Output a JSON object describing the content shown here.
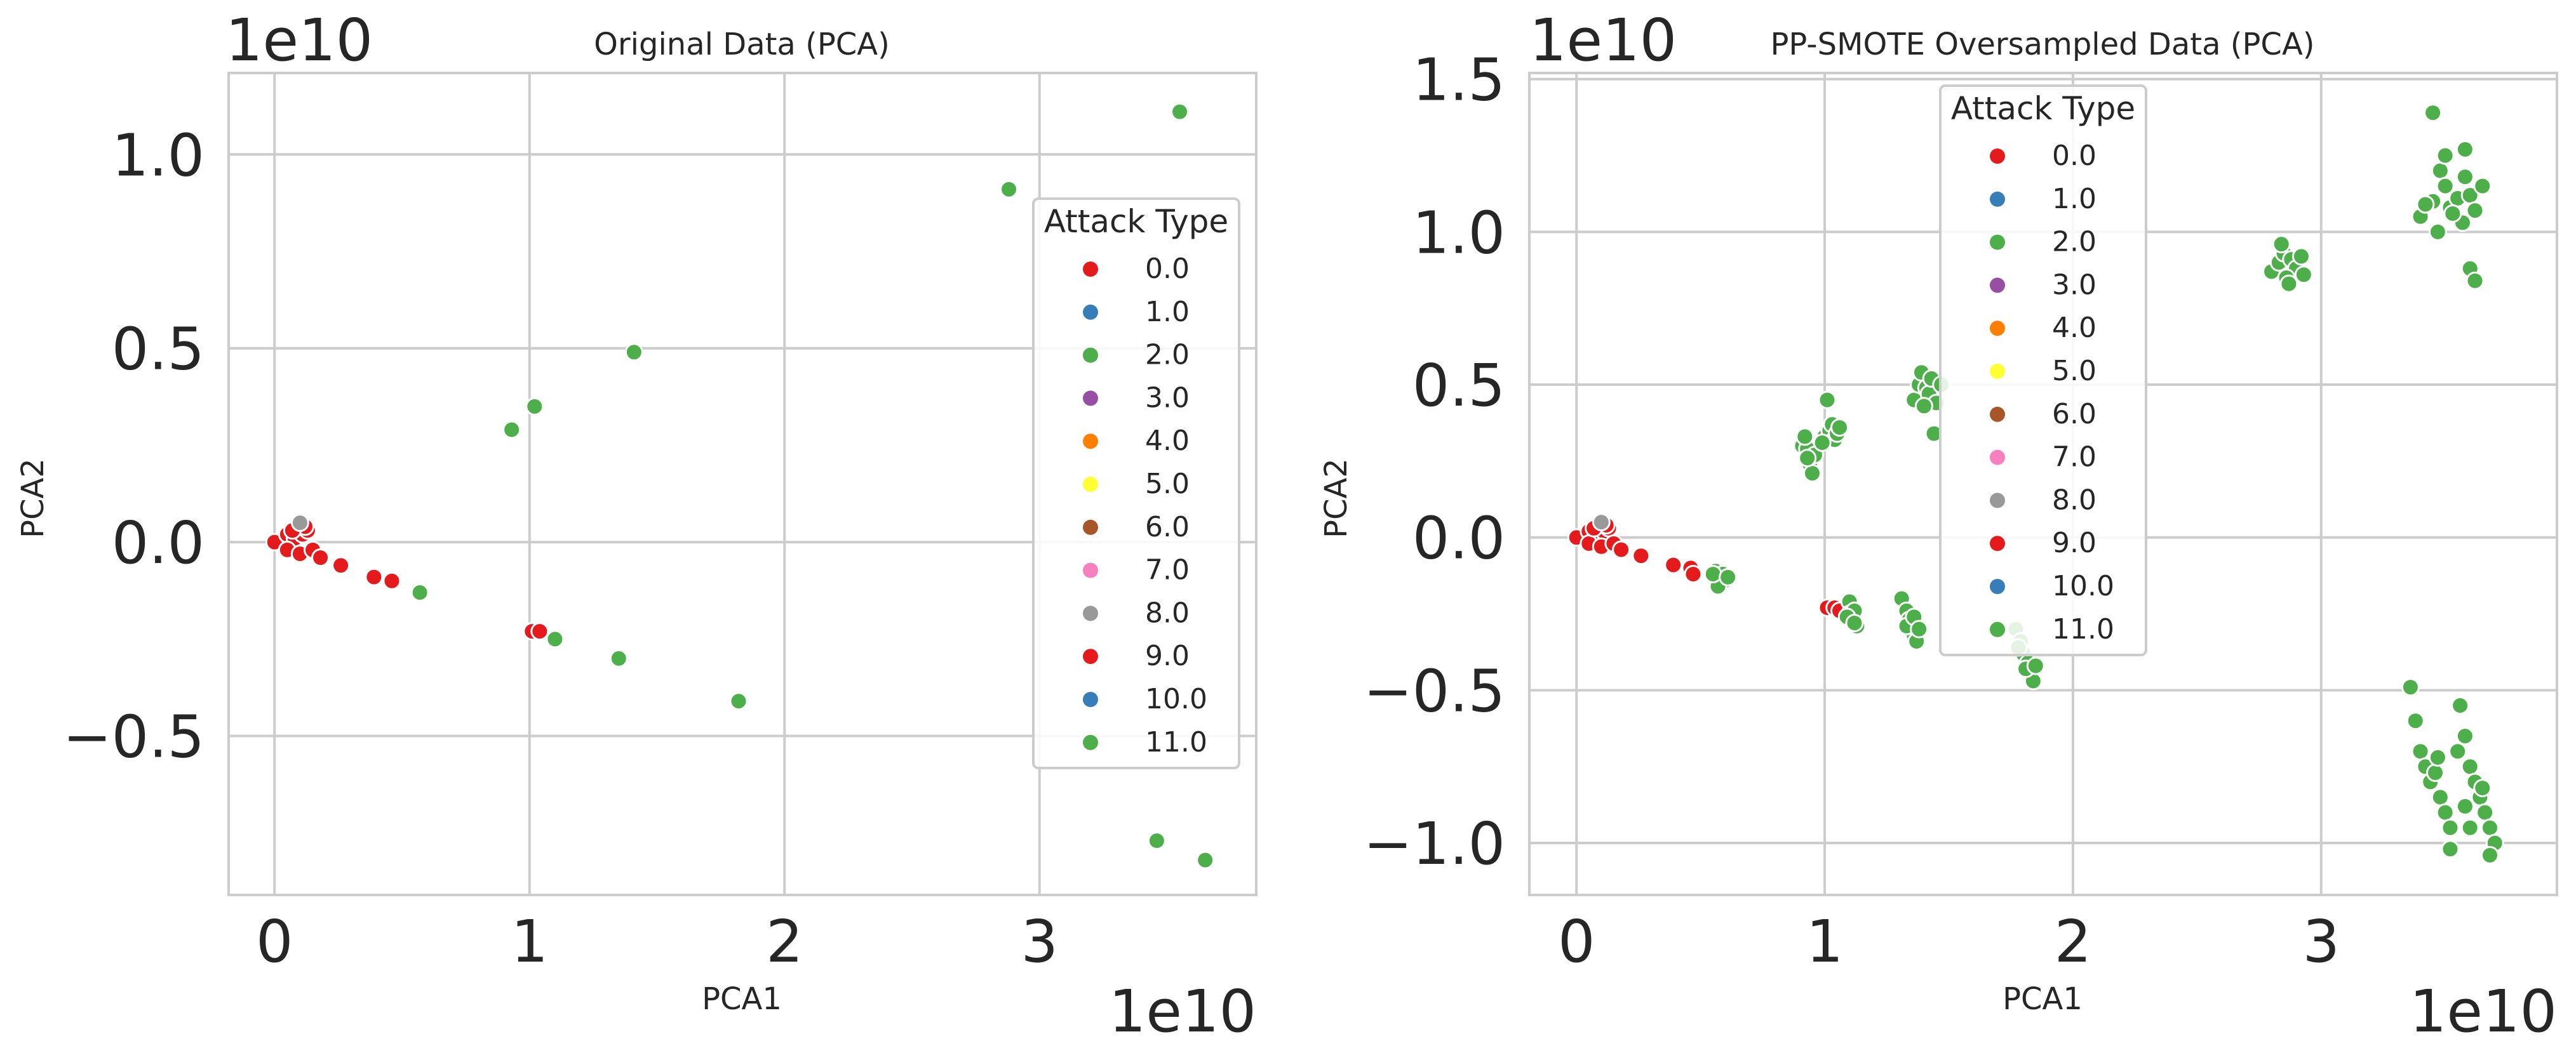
{
  "colors": {
    "red": "#e41a1c",
    "blue": "#377eb8",
    "green": "#4daf4a",
    "purple": "#984ea3",
    "orange": "#ff7f00",
    "yellow": "#ffff33",
    "brown": "#a65628",
    "pink": "#f781bf",
    "gray": "#999999"
  },
  "chart_data": [
    {
      "type": "scatter",
      "title": "Original Data (PCA)",
      "xlabel": "PCA1",
      "ylabel": "PCA2",
      "x_offset_text": "1e10",
      "y_offset_text": "1e10",
      "xlim": [
        -0.18,
        3.85
      ],
      "ylim": [
        -0.91,
        1.21
      ],
      "xticks": [
        0,
        1,
        2,
        3
      ],
      "xtick_labels": [
        "0",
        "1",
        "2",
        "3"
      ],
      "yticks": [
        -0.5,
        0.0,
        0.5,
        1.0
      ],
      "ytick_labels": [
        "−0.5",
        "0.0",
        "0.5",
        "1.0"
      ],
      "grid": true,
      "legend": {
        "title": "Attack Type",
        "placement": "right",
        "entries": [
          {
            "label": "0.0",
            "color": "#e41a1c"
          },
          {
            "label": "1.0",
            "color": "#377eb8"
          },
          {
            "label": "2.0",
            "color": "#4daf4a"
          },
          {
            "label": "3.0",
            "color": "#984ea3"
          },
          {
            "label": "4.0",
            "color": "#ff7f00"
          },
          {
            "label": "5.0",
            "color": "#ffff33"
          },
          {
            "label": "6.0",
            "color": "#a65628"
          },
          {
            "label": "7.0",
            "color": "#f781bf"
          },
          {
            "label": "8.0",
            "color": "#999999"
          },
          {
            "label": "9.0",
            "color": "#e41a1c"
          },
          {
            "label": "10.0",
            "color": "#377eb8"
          },
          {
            "label": "11.0",
            "color": "#4daf4a"
          }
        ]
      },
      "series": [
        {
          "name": "0.0",
          "color": "#e41a1c",
          "points": [
            [
              0.0,
              0.0
            ],
            [
              0.05,
              0.02
            ],
            [
              0.08,
              0.01
            ],
            [
              0.11,
              0.02
            ],
            [
              0.13,
              0.03
            ],
            [
              0.05,
              -0.02
            ],
            [
              0.1,
              -0.03
            ],
            [
              0.15,
              -0.02
            ],
            [
              0.18,
              -0.04
            ],
            [
              0.12,
              0.04
            ],
            [
              0.07,
              0.03
            ]
          ]
        },
        {
          "name": "2.0",
          "color": "#4daf4a",
          "points": [
            [
              0.57,
              -0.13
            ],
            [
              1.1,
              -0.25
            ],
            [
              1.35,
              -0.3
            ],
            [
              1.82,
              -0.41
            ],
            [
              0.93,
              0.29
            ],
            [
              1.02,
              0.35
            ],
            [
              1.41,
              0.49
            ],
            [
              2.88,
              0.91
            ],
            [
              3.55,
              1.11
            ],
            [
              3.46,
              -0.77
            ],
            [
              3.65,
              -0.82
            ]
          ]
        },
        {
          "name": "8.0",
          "color": "#999999",
          "points": [
            [
              0.1,
              0.05
            ]
          ]
        },
        {
          "name": "9.0",
          "color": "#e41a1c",
          "points": [
            [
              0.26,
              -0.06
            ],
            [
              0.39,
              -0.09
            ],
            [
              0.46,
              -0.1
            ],
            [
              1.01,
              -0.23
            ],
            [
              1.04,
              -0.23
            ]
          ]
        }
      ]
    },
    {
      "type": "scatter",
      "title": "PP-SMOTE Oversampled Data (PCA)",
      "xlabel": "PCA1",
      "ylabel": "PCA2",
      "x_offset_text": "1e10",
      "y_offset_text": "1e10",
      "xlim": [
        -0.19,
        3.95
      ],
      "ylim": [
        -1.17,
        1.52
      ],
      "xticks": [
        0,
        1,
        2,
        3
      ],
      "xtick_labels": [
        "0",
        "1",
        "2",
        "3"
      ],
      "yticks": [
        -1.0,
        -0.5,
        0.0,
        0.5,
        1.0,
        1.5
      ],
      "ytick_labels": [
        "−1.0",
        "−0.5",
        "0.0",
        "0.5",
        "1.0",
        "1.5"
      ],
      "grid": true,
      "legend": {
        "title": "Attack Type",
        "placement": "upper center",
        "entries": [
          {
            "label": "0.0",
            "color": "#e41a1c"
          },
          {
            "label": "1.0",
            "color": "#377eb8"
          },
          {
            "label": "2.0",
            "color": "#4daf4a"
          },
          {
            "label": "3.0",
            "color": "#984ea3"
          },
          {
            "label": "4.0",
            "color": "#ff7f00"
          },
          {
            "label": "5.0",
            "color": "#ffff33"
          },
          {
            "label": "6.0",
            "color": "#a65628"
          },
          {
            "label": "7.0",
            "color": "#f781bf"
          },
          {
            "label": "8.0",
            "color": "#999999"
          },
          {
            "label": "9.0",
            "color": "#e41a1c"
          },
          {
            "label": "10.0",
            "color": "#377eb8"
          },
          {
            "label": "11.0",
            "color": "#4daf4a"
          }
        ]
      },
      "series": [
        {
          "name": "0.0",
          "color": "#e41a1c",
          "points": [
            [
              0.0,
              0.0
            ],
            [
              0.05,
              0.02
            ],
            [
              0.08,
              0.01
            ],
            [
              0.11,
              0.02
            ],
            [
              0.13,
              0.03
            ],
            [
              0.05,
              -0.02
            ],
            [
              0.1,
              -0.03
            ],
            [
              0.15,
              -0.02
            ],
            [
              0.18,
              -0.04
            ],
            [
              0.12,
              0.04
            ],
            [
              0.07,
              0.03
            ]
          ]
        },
        {
          "name": "8.0",
          "color": "#999999",
          "points": [
            [
              0.1,
              0.05
            ]
          ]
        },
        {
          "name": "9.0",
          "color": "#e41a1c",
          "points": [
            [
              0.26,
              -0.06
            ],
            [
              0.39,
              -0.09
            ],
            [
              0.46,
              -0.1
            ],
            [
              0.47,
              -0.12
            ],
            [
              1.01,
              -0.23
            ],
            [
              1.04,
              -0.23
            ],
            [
              1.06,
              -0.24
            ]
          ]
        },
        {
          "name": "11.0",
          "color": "#4daf4a",
          "points": [
            [
              0.56,
              -0.11
            ],
            [
              0.57,
              -0.13
            ],
            [
              0.58,
              -0.15
            ],
            [
              0.59,
              -0.12
            ],
            [
              0.6,
              -0.14
            ],
            [
              0.57,
              -0.16
            ],
            [
              0.55,
              -0.12
            ],
            [
              0.61,
              -0.13
            ],
            [
              1.1,
              -0.21
            ],
            [
              1.1,
              -0.25
            ],
            [
              1.11,
              -0.27
            ],
            [
              1.12,
              -0.24
            ],
            [
              1.13,
              -0.29
            ],
            [
              1.09,
              -0.26
            ],
            [
              1.12,
              -0.28
            ],
            [
              1.31,
              -0.2
            ],
            [
              1.33,
              -0.24
            ],
            [
              1.34,
              -0.27
            ],
            [
              1.35,
              -0.3
            ],
            [
              1.36,
              -0.32
            ],
            [
              1.37,
              -0.34
            ],
            [
              1.33,
              -0.29
            ],
            [
              1.36,
              -0.26
            ],
            [
              1.38,
              -0.3
            ],
            [
              1.77,
              -0.3
            ],
            [
              1.79,
              -0.34
            ],
            [
              1.8,
              -0.38
            ],
            [
              1.82,
              -0.41
            ],
            [
              1.83,
              -0.44
            ],
            [
              1.84,
              -0.47
            ],
            [
              1.81,
              -0.43
            ],
            [
              1.85,
              -0.42
            ],
            [
              1.78,
              -0.36
            ],
            [
              0.91,
              0.3
            ],
            [
              0.93,
              0.29
            ],
            [
              0.94,
              0.24
            ],
            [
              0.95,
              0.21
            ],
            [
              0.92,
              0.33
            ],
            [
              0.96,
              0.27
            ],
            [
              0.93,
              0.26
            ],
            [
              1.0,
              0.33
            ],
            [
              1.01,
              0.45
            ],
            [
              1.02,
              0.35
            ],
            [
              1.03,
              0.37
            ],
            [
              1.04,
              0.32
            ],
            [
              1.05,
              0.34
            ],
            [
              0.99,
              0.31
            ],
            [
              1.06,
              0.36
            ],
            [
              1.36,
              0.45
            ],
            [
              1.38,
              0.5
            ],
            [
              1.39,
              0.54
            ],
            [
              1.41,
              0.49
            ],
            [
              1.42,
              0.47
            ],
            [
              1.43,
              0.52
            ],
            [
              1.45,
              0.44
            ],
            [
              1.47,
              0.5
            ],
            [
              1.4,
              0.43
            ],
            [
              1.44,
              0.34
            ],
            [
              2.8,
              0.87
            ],
            [
              2.83,
              0.9
            ],
            [
              2.85,
              0.93
            ],
            [
              2.88,
              0.91
            ],
            [
              2.9,
              0.88
            ],
            [
              2.92,
              0.92
            ],
            [
              2.86,
              0.85
            ],
            [
              2.84,
              0.96
            ],
            [
              2.93,
              0.86
            ],
            [
              2.87,
              0.83
            ],
            [
              3.4,
              1.05
            ],
            [
              3.45,
              1.1
            ],
            [
              3.48,
              1.2
            ],
            [
              3.5,
              1.15
            ],
            [
              3.52,
              1.08
            ],
            [
              3.55,
              1.11
            ],
            [
              3.57,
              1.03
            ],
            [
              3.58,
              1.18
            ],
            [
              3.6,
              1.12
            ],
            [
              3.62,
              1.07
            ],
            [
              3.5,
              1.25
            ],
            [
              3.45,
              1.39
            ],
            [
              3.58,
              1.27
            ],
            [
              3.6,
              0.88
            ],
            [
              3.62,
              0.84
            ],
            [
              3.47,
              1.0
            ],
            [
              3.42,
              1.09
            ],
            [
              3.65,
              1.15
            ],
            [
              3.53,
              1.06
            ],
            [
              3.36,
              -0.49
            ],
            [
              3.38,
              -0.6
            ],
            [
              3.4,
              -0.7
            ],
            [
              3.42,
              -0.75
            ],
            [
              3.44,
              -0.8
            ],
            [
              3.46,
              -0.77
            ],
            [
              3.48,
              -0.85
            ],
            [
              3.5,
              -0.9
            ],
            [
              3.52,
              -0.95
            ],
            [
              3.55,
              -0.7
            ],
            [
              3.56,
              -0.55
            ],
            [
              3.58,
              -0.65
            ],
            [
              3.6,
              -0.75
            ],
            [
              3.62,
              -0.8
            ],
            [
              3.64,
              -0.85
            ],
            [
              3.65,
              -0.82
            ],
            [
              3.66,
              -0.9
            ],
            [
              3.68,
              -0.95
            ],
            [
              3.7,
              -1.0
            ],
            [
              3.68,
              -1.04
            ],
            [
              3.6,
              -0.95
            ],
            [
              3.52,
              -1.02
            ],
            [
              3.47,
              -0.72
            ],
            [
              3.58,
              -0.88
            ]
          ]
        }
      ]
    }
  ]
}
